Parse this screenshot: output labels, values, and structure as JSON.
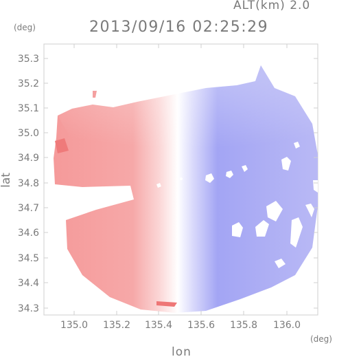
{
  "header": {
    "altitude_label": "ALT(km) 2.0",
    "timestamp": "2013/09/16 02:25:29"
  },
  "axes": {
    "x_unit": "(deg)",
    "y_unit": "(deg)",
    "xlabel": "lon",
    "ylabel": "lat",
    "x_ticks": [
      "135.0",
      "135.2",
      "135.4",
      "135.6",
      "135.8",
      "136.0"
    ],
    "y_ticks": [
      "35.3",
      "35.2",
      "35.1",
      "35.0",
      "34.9",
      "34.8",
      "34.7",
      "34.6",
      "34.5",
      "34.4",
      "34.3"
    ],
    "xlim": [
      134.9,
      136.17
    ],
    "ylim": [
      34.28,
      35.37
    ]
  },
  "map": {
    "center_lon": 135.52,
    "center_lat": 34.82,
    "colors": {
      "approaching": "#8a8cf2",
      "receding": "#f08a8a",
      "neutral": "#ffffff",
      "frame": "#cfcfcf"
    }
  }
}
